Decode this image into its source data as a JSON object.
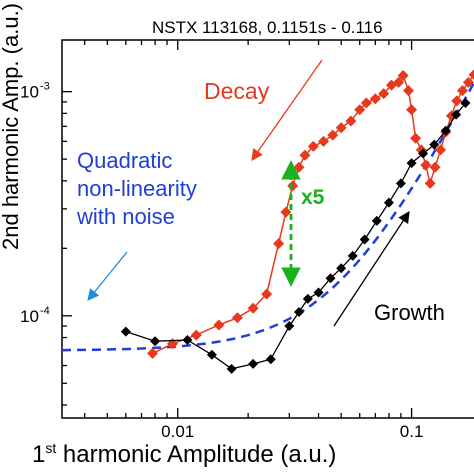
{
  "chart_data": {
    "type": "line",
    "title": "NSTX 113168, 0.1151s - 0.116",
    "xlabel_sup": "st",
    "xlabel_prefix": "1",
    "xlabel_rest": " harmonic Amplitude (a.u.)",
    "ylabel": "2nd harmonic Amp. (a.u.)",
    "x_scale": "log",
    "y_scale": "log",
    "xlim": [
      0.0032,
      0.2
    ],
    "ylim": [
      3.5e-05,
      0.0017
    ],
    "x_ticks": [
      {
        "value": 0.01,
        "label": "0.01"
      },
      {
        "value": 0.1,
        "label": "0.1"
      }
    ],
    "y_ticks": [
      {
        "value": 0.0001,
        "label": "10",
        "exp": "-4"
      },
      {
        "value": 0.001,
        "label": "10",
        "exp": "-3"
      }
    ],
    "series": [
      {
        "name": "Decay",
        "color": "#e8391f",
        "marker": "diamond",
        "x": [
          0.0078,
          0.0095,
          0.012,
          0.015,
          0.018,
          0.021,
          0.024,
          0.027,
          0.029,
          0.031,
          0.033,
          0.035,
          0.038,
          0.042,
          0.046,
          0.05,
          0.055,
          0.06,
          0.064,
          0.07,
          0.076,
          0.082,
          0.088,
          0.092,
          0.097,
          0.1,
          0.104,
          0.11,
          0.115,
          0.12,
          0.126,
          0.133,
          0.14,
          0.148,
          0.156,
          0.165,
          0.175,
          0.185
        ],
        "y": [
          6.8e-05,
          7.5e-05,
          8.2e-05,
          9.1e-05,
          9.8e-05,
          0.000108,
          0.000125,
          0.00021,
          0.00029,
          0.00038,
          0.00046,
          0.00052,
          0.00057,
          0.0006,
          0.00064,
          0.00069,
          0.00074,
          0.00083,
          0.00089,
          0.00093,
          0.00098,
          0.00107,
          0.0011,
          0.00118,
          0.00101,
          0.00083,
          0.00062,
          0.00055,
          0.00047,
          0.00039,
          0.00046,
          0.00055,
          0.00066,
          0.00078,
          0.00091,
          0.00101,
          0.0011,
          0.00119
        ]
      },
      {
        "name": "Growth",
        "color": "#000000",
        "marker": "diamond",
        "x": [
          0.006,
          0.008,
          0.011,
          0.014,
          0.017,
          0.021,
          0.025,
          0.03,
          0.033,
          0.036,
          0.04,
          0.045,
          0.05,
          0.056,
          0.063,
          0.071,
          0.08,
          0.09,
          0.1,
          0.112,
          0.125,
          0.14,
          0.155,
          0.17
        ],
        "y": [
          8.5e-05,
          7.7e-05,
          7.8e-05,
          6.7e-05,
          5.8e-05,
          6.1e-05,
          6.4e-05,
          9e-05,
          0.000104,
          0.000119,
          0.000127,
          0.000147,
          0.000163,
          0.000185,
          0.000219,
          0.000265,
          0.00032,
          0.00039,
          0.00048,
          0.00053,
          0.00058,
          0.00067,
          0.00079,
          0.00089
        ]
      },
      {
        "name": "Quadratic non-linearity with noise",
        "color": "#1f3fd6",
        "style": "dashed",
        "formula": "y = 0.00007 + 0.03 * x^2"
      }
    ],
    "annotations": [
      {
        "text": "Decay",
        "color": "#e8391f"
      },
      {
        "text_lines": [
          "Quadratic",
          "non-linearity",
          "with noise"
        ],
        "color": "#1f3fd6"
      },
      {
        "text": "x5",
        "color": "#19b21c"
      },
      {
        "text": "Growth",
        "color": "#000000"
      }
    ]
  }
}
